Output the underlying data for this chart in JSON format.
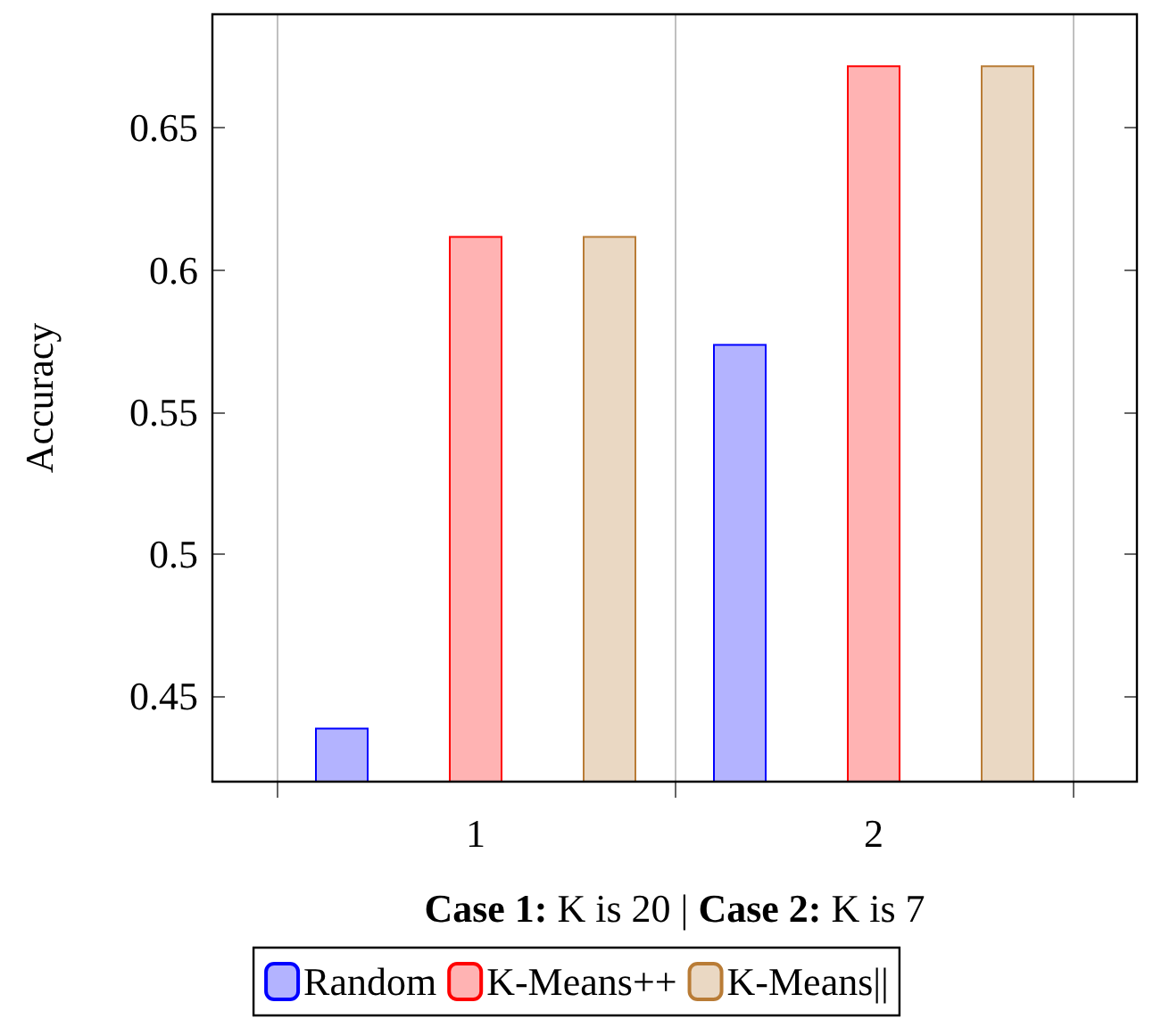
{
  "chart_data": {
    "type": "bar",
    "xlabel": "Case 1: K is 20 | Case 2: K is 7",
    "ylabel": "Accuracy",
    "categories": [
      "1",
      "2"
    ],
    "series": [
      {
        "name": "Random",
        "color": "#b3b3ff",
        "values": [
          0.439,
          0.574
        ]
      },
      {
        "name": "K-Means++",
        "color": "#ffb3b3",
        "values": [
          0.612,
          0.672
        ]
      },
      {
        "name": "K-Means||",
        "color": "#ead8c3",
        "values": [
          0.612,
          0.672
        ]
      }
    ],
    "ylim": [
      0.42,
      0.69
    ],
    "yticks": [
      0.45,
      0.5,
      0.55,
      0.6,
      0.65
    ],
    "grid": "x",
    "legend": "bottom"
  }
}
